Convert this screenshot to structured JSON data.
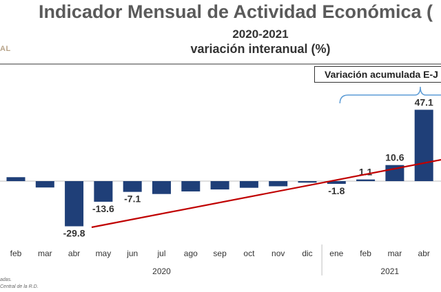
{
  "header": {
    "title": "Indicador Mensual de Actividad Económica (",
    "subtitle_years": "2020-2021",
    "subtitle_measure": "variación interanual (%)",
    "brand": "AL"
  },
  "callout": {
    "label": "Variación acumulada E-J"
  },
  "notes": {
    "line1": "adas.",
    "line2": "Central de la R.D."
  },
  "colors": {
    "bar": "#1f3f78",
    "trend": "#c00000",
    "brace": "#5b9bd5"
  },
  "chart_data": {
    "type": "bar",
    "categories": [
      "feb",
      "mar",
      "abr",
      "may",
      "jun",
      "jul",
      "ago",
      "sep",
      "oct",
      "nov",
      "dic",
      "ene",
      "feb",
      "mar",
      "abr"
    ],
    "years": [
      {
        "label": "2020",
        "from": 0,
        "to": 10
      },
      {
        "label": "2021",
        "from": 11,
        "to": 14
      }
    ],
    "values": [
      2.6,
      -4.2,
      -29.8,
      -13.6,
      -7.1,
      -8.5,
      -6.8,
      -5.5,
      -4.4,
      -3.4,
      -1.0,
      -1.8,
      1.1,
      10.6,
      47.1
    ],
    "data_labels": [
      "",
      "",
      "-29.8",
      "-13.6",
      "-7.1",
      "",
      "",
      "",
      "",
      "",
      "",
      "-1.8",
      "1.1",
      "10.6",
      "47.1"
    ],
    "trendline": true,
    "grid": false,
    "legend": "none"
  }
}
